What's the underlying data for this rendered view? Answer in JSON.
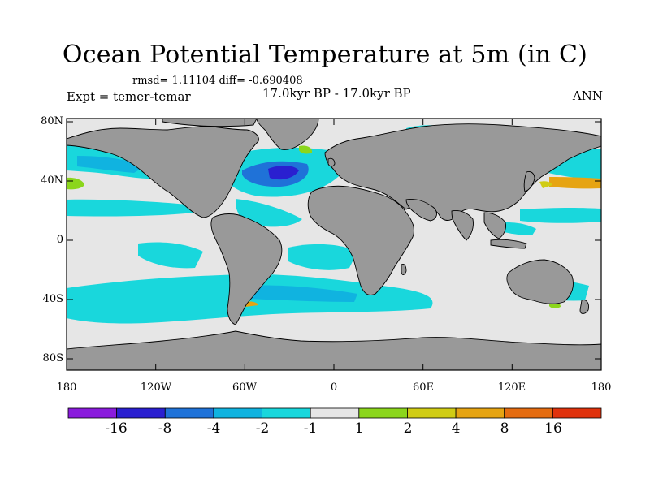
{
  "title": "Ocean Potential Temperature at 5m (in C)",
  "stats": "rmsd= 1.11104 diff= -0.690408",
  "experiment": "Expt = temer-temar",
  "period": "17.0kyr BP - 17.0kyr BP",
  "season": "ANN",
  "lat_ticks": [
    "80N",
    "40N",
    "0",
    "40S",
    "80S"
  ],
  "lon_ticks": [
    "180",
    "120W",
    "60W",
    "0",
    "60E",
    "120E",
    "180"
  ],
  "colorbar": {
    "labels": [
      "-16",
      "-8",
      "-4",
      "-2",
      "-1",
      "1",
      "2",
      "4",
      "8",
      "16"
    ],
    "colors": [
      "#8a1bdc",
      "#2a1fd0",
      "#1f72d8",
      "#10b3e0",
      "#19d7dc",
      "#e6e6e6",
      "#8bd61c",
      "#d0cc14",
      "#e6a412",
      "#e56c10",
      "#e0320c"
    ]
  },
  "map_colors": {
    "land": "#999999",
    "near_zero": "#e6e6e6",
    "coast": "#000000"
  }
}
